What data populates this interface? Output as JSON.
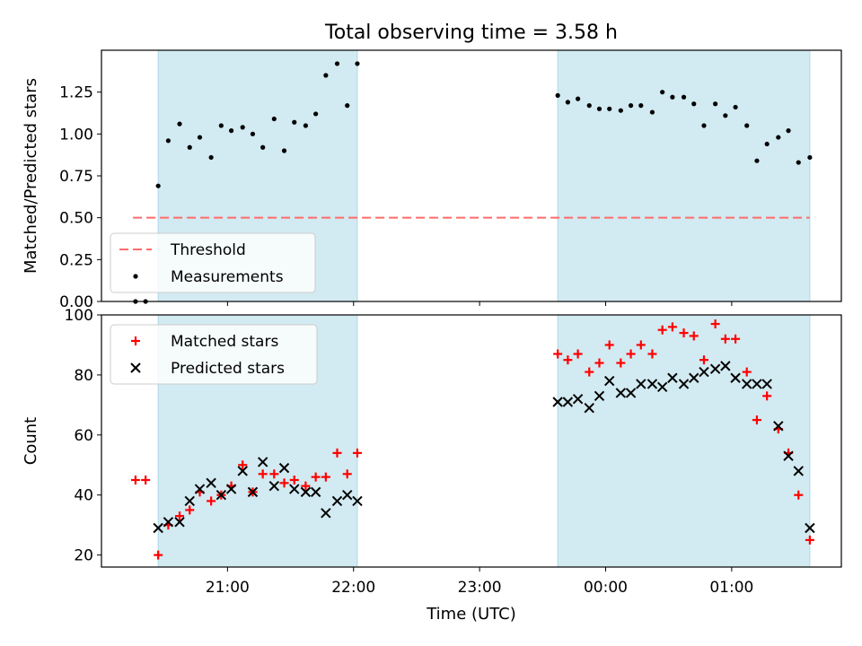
{
  "title": "Total observing time = 3.58 h",
  "xlabel": "Time (UTC)",
  "xticks": [
    {
      "t": 21.0,
      "label": "21:00"
    },
    {
      "t": 22.0,
      "label": "22:00"
    },
    {
      "t": 23.0,
      "label": "23:00"
    },
    {
      "t": 24.0,
      "label": "00:00"
    },
    {
      "t": 25.0,
      "label": "01:00"
    }
  ],
  "xlim": [
    20.0,
    25.87
  ],
  "observing_windows": [
    [
      20.45,
      22.03
    ],
    [
      23.62,
      25.62
    ]
  ],
  "colors": {
    "window": "#add8e6",
    "threshold": "#ff6b6b",
    "matched": "#ff0000",
    "predicted": "#000000",
    "measurement": "#000000"
  },
  "chart_data": [
    {
      "type": "scatter",
      "ylabel": "Matched/Predicted stars",
      "ylim": [
        0,
        1.5
      ],
      "yticks": [
        "0.00",
        "0.25",
        "0.50",
        "0.75",
        "1.00",
        "1.25"
      ],
      "threshold": {
        "value": 0.5,
        "x_range": [
          20.25,
          25.62
        ],
        "label": "Threshold"
      },
      "legend": {
        "placement": "lower-left",
        "entries": [
          "Threshold",
          "Measurements"
        ]
      },
      "series": [
        {
          "name": "Measurements",
          "points": [
            [
              20.27,
              0.0
            ],
            [
              20.35,
              0.0
            ],
            [
              20.45,
              0.69
            ],
            [
              20.53,
              0.96
            ],
            [
              20.62,
              1.06
            ],
            [
              20.7,
              0.92
            ],
            [
              20.78,
              0.98
            ],
            [
              20.87,
              0.86
            ],
            [
              20.95,
              1.05
            ],
            [
              21.03,
              1.02
            ],
            [
              21.12,
              1.04
            ],
            [
              21.2,
              1.0
            ],
            [
              21.28,
              0.92
            ],
            [
              21.37,
              1.09
            ],
            [
              21.45,
              0.9
            ],
            [
              21.53,
              1.07
            ],
            [
              21.62,
              1.05
            ],
            [
              21.7,
              1.12
            ],
            [
              21.78,
              1.35
            ],
            [
              21.87,
              1.42
            ],
            [
              21.95,
              1.17
            ],
            [
              22.03,
              1.42
            ],
            [
              23.62,
              1.23
            ],
            [
              23.7,
              1.19
            ],
            [
              23.78,
              1.21
            ],
            [
              23.87,
              1.17
            ],
            [
              23.95,
              1.15
            ],
            [
              24.03,
              1.15
            ],
            [
              24.12,
              1.14
            ],
            [
              24.2,
              1.17
            ],
            [
              24.28,
              1.17
            ],
            [
              24.37,
              1.13
            ],
            [
              24.45,
              1.25
            ],
            [
              24.53,
              1.22
            ],
            [
              24.62,
              1.22
            ],
            [
              24.7,
              1.18
            ],
            [
              24.78,
              1.05
            ],
            [
              24.87,
              1.18
            ],
            [
              24.95,
              1.11
            ],
            [
              25.03,
              1.16
            ],
            [
              25.12,
              1.05
            ],
            [
              25.2,
              0.84
            ],
            [
              25.28,
              0.94
            ],
            [
              25.37,
              0.98
            ],
            [
              25.45,
              1.02
            ],
            [
              25.53,
              0.83
            ],
            [
              25.62,
              0.86
            ]
          ]
        }
      ]
    },
    {
      "type": "scatter",
      "ylabel": "Count",
      "ylim": [
        16,
        100
      ],
      "yticks": [
        "20",
        "40",
        "60",
        "80",
        "100"
      ],
      "legend": {
        "placement": "top-left",
        "entries": [
          "Matched stars",
          "Predicted stars"
        ]
      },
      "series": [
        {
          "name": "Matched stars",
          "marker": "+",
          "points": [
            [
              20.27,
              45
            ],
            [
              20.35,
              45
            ],
            [
              20.45,
              20
            ],
            [
              20.53,
              30
            ],
            [
              20.62,
              33
            ],
            [
              20.7,
              35
            ],
            [
              20.78,
              41
            ],
            [
              20.87,
              38
            ],
            [
              20.95,
              40
            ],
            [
              21.03,
              43
            ],
            [
              21.12,
              50
            ],
            [
              21.2,
              41
            ],
            [
              21.28,
              47
            ],
            [
              21.37,
              47
            ],
            [
              21.45,
              44
            ],
            [
              21.53,
              45
            ],
            [
              21.62,
              43
            ],
            [
              21.7,
              46
            ],
            [
              21.78,
              46
            ],
            [
              21.87,
              54
            ],
            [
              21.95,
              47
            ],
            [
              22.03,
              54
            ],
            [
              23.62,
              87
            ],
            [
              23.7,
              85
            ],
            [
              23.78,
              87
            ],
            [
              23.87,
              81
            ],
            [
              23.95,
              84
            ],
            [
              24.03,
              90
            ],
            [
              24.12,
              84
            ],
            [
              24.2,
              87
            ],
            [
              24.28,
              90
            ],
            [
              24.37,
              87
            ],
            [
              24.45,
              95
            ],
            [
              24.53,
              96
            ],
            [
              24.62,
              94
            ],
            [
              24.7,
              93
            ],
            [
              24.78,
              85
            ],
            [
              24.87,
              97
            ],
            [
              24.95,
              92
            ],
            [
              25.03,
              92
            ],
            [
              25.12,
              81
            ],
            [
              25.2,
              65
            ],
            [
              25.28,
              73
            ],
            [
              25.37,
              62
            ],
            [
              25.45,
              54
            ],
            [
              25.53,
              40
            ],
            [
              25.62,
              25
            ]
          ]
        },
        {
          "name": "Predicted stars",
          "marker": "x",
          "points": [
            [
              20.45,
              29
            ],
            [
              20.53,
              31
            ],
            [
              20.62,
              31
            ],
            [
              20.7,
              38
            ],
            [
              20.78,
              42
            ],
            [
              20.87,
              44
            ],
            [
              20.95,
              40
            ],
            [
              21.03,
              42
            ],
            [
              21.12,
              48
            ],
            [
              21.2,
              41
            ],
            [
              21.28,
              51
            ],
            [
              21.37,
              43
            ],
            [
              21.45,
              49
            ],
            [
              21.53,
              42
            ],
            [
              21.62,
              41
            ],
            [
              21.7,
              41
            ],
            [
              21.78,
              34
            ],
            [
              21.87,
              38
            ],
            [
              21.95,
              40
            ],
            [
              22.03,
              38
            ],
            [
              23.62,
              71
            ],
            [
              23.7,
              71
            ],
            [
              23.78,
              72
            ],
            [
              23.87,
              69
            ],
            [
              23.95,
              73
            ],
            [
              24.03,
              78
            ],
            [
              24.12,
              74
            ],
            [
              24.2,
              74
            ],
            [
              24.28,
              77
            ],
            [
              24.37,
              77
            ],
            [
              24.45,
              76
            ],
            [
              24.53,
              79
            ],
            [
              24.62,
              77
            ],
            [
              24.7,
              79
            ],
            [
              24.78,
              81
            ],
            [
              24.87,
              82
            ],
            [
              24.95,
              83
            ],
            [
              25.03,
              79
            ],
            [
              25.12,
              77
            ],
            [
              25.2,
              77
            ],
            [
              25.28,
              77
            ],
            [
              25.37,
              63
            ],
            [
              25.45,
              53
            ],
            [
              25.53,
              48
            ],
            [
              25.62,
              29
            ]
          ]
        }
      ]
    }
  ]
}
